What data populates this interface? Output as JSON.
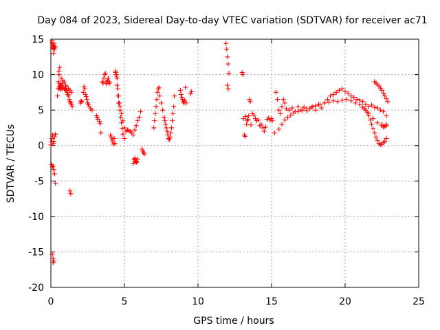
{
  "chart_data": {
    "type": "scatter",
    "title": "Day 084 of 2023, Sidereal Day-to-day VTEC variation (SDTVAR) for receiver ac71",
    "xlabel": "GPS time / hours",
    "ylabel": "SDTVAR / TECUs",
    "xlim": [
      0,
      25
    ],
    "ylim": [
      -20,
      15
    ],
    "xticks": [
      0,
      5,
      10,
      15,
      20,
      25
    ],
    "yticks": [
      -20,
      -15,
      -10,
      -5,
      0,
      5,
      10,
      15
    ],
    "xtick_labels": [
      "0",
      "5",
      "10",
      "15",
      "20",
      "25"
    ],
    "ytick_labels": [
      "-20",
      "-15",
      "-10",
      "-5",
      "0",
      "5",
      "10",
      "15"
    ],
    "grid": true,
    "marker": "+",
    "color": "#ff0000",
    "series": [
      {
        "name": "SDTVAR",
        "x": [
          0.0,
          0.04,
          0.08,
          0.12,
          0.16,
          0.2,
          0.24,
          0.3,
          0.06,
          0.1,
          0.14,
          0.18,
          0.22,
          0.26,
          0.05,
          0.1,
          0.15,
          0.2,
          0.25,
          0.3,
          0.08,
          0.13,
          0.18,
          0.22,
          0.3,
          0.1,
          0.15,
          0.15,
          0.2,
          0.45,
          0.5,
          0.55,
          0.6,
          0.65,
          0.7,
          0.75,
          0.8,
          0.85,
          0.9,
          0.95,
          1.0,
          1.05,
          1.1,
          1.15,
          1.2,
          1.25,
          1.3,
          1.35,
          1.4,
          1.45,
          0.55,
          0.6,
          0.7,
          0.8,
          0.9,
          1.0,
          1.1,
          1.2,
          1.3,
          1.4,
          0.5,
          0.55,
          0.6,
          0.65,
          1.3,
          1.35,
          2.0,
          2.05,
          2.1,
          2.2,
          2.25,
          2.3,
          2.35,
          2.4,
          2.45,
          2.5,
          2.55,
          2.6,
          2.7,
          2.8,
          3.1,
          3.15,
          3.2,
          3.3,
          3.35,
          3.4,
          3.5,
          3.55,
          3.6,
          3.65,
          3.7,
          3.75,
          3.8,
          3.85,
          3.9,
          3.95,
          4.0,
          4.05,
          4.1,
          4.15,
          4.2,
          4.25,
          4.3,
          4.35,
          4.4,
          4.45,
          4.5,
          4.55,
          4.6,
          4.65,
          4.7,
          4.75,
          4.8,
          4.85,
          4.9,
          5.0,
          4.4,
          4.45,
          4.5,
          4.55,
          4.6,
          4.7,
          4.8,
          4.9,
          5.0,
          5.1,
          5.2,
          5.3,
          5.4,
          5.5,
          5.6,
          5.7,
          5.8,
          5.9,
          6.0,
          5.6,
          5.65,
          5.7,
          5.75,
          5.8,
          5.85,
          5.9,
          6.2,
          6.25,
          6.3,
          6.35,
          6.1,
          7.0,
          7.05,
          7.1,
          7.15,
          7.2,
          7.25,
          7.3,
          7.35,
          7.4,
          7.5,
          7.6,
          7.7,
          7.75,
          7.8,
          7.85,
          7.9,
          7.95,
          8.0,
          8.05,
          8.1,
          8.15,
          8.2,
          8.25,
          8.3,
          8.35,
          8.4,
          8.8,
          8.85,
          8.9,
          8.95,
          9.0,
          9.05,
          9.1,
          9.15,
          9.2,
          9.5,
          9.55,
          11.9,
          11.95,
          12.0,
          12.05,
          12.1,
          12.0,
          12.05,
          13.0,
          13.05,
          13.1,
          13.15,
          13.2,
          13.25,
          13.3,
          13.35,
          13.4,
          13.45,
          13.5,
          13.55,
          13.6,
          13.7,
          13.8,
          13.9,
          14.0,
          14.1,
          14.2,
          14.3,
          14.4,
          14.5,
          14.6,
          14.7,
          14.8,
          14.9,
          15.0,
          15.05,
          15.2,
          15.3,
          15.4,
          15.5,
          15.6,
          15.7,
          15.8,
          15.9,
          16.0,
          16.2,
          16.4,
          16.6,
          16.8,
          17.0,
          17.2,
          17.4,
          17.6,
          17.8,
          18.0,
          18.2,
          18.4,
          18.6,
          18.8,
          19.0,
          19.2,
          19.4,
          19.6,
          19.8,
          20.0,
          20.2,
          20.4,
          20.6,
          20.8,
          21.0,
          21.2,
          21.4,
          21.6,
          21.8,
          22.0,
          22.2,
          22.4,
          22.6,
          22.8,
          15.5,
          15.7,
          15.9,
          16.1,
          16.3,
          16.5,
          16.8,
          17.1,
          17.4,
          17.7,
          18.0,
          18.3,
          18.6,
          18.9,
          19.2,
          19.5,
          19.8,
          20.1,
          20.4,
          20.7,
          21.0,
          21.3,
          21.6,
          21.9,
          22.2,
          22.5,
          22.8,
          21.2,
          21.3,
          21.4,
          21.5,
          21.6,
          21.7,
          21.8,
          21.9,
          22.0,
          22.1,
          22.2,
          22.3,
          22.4,
          22.5,
          22.6,
          22.7,
          22.8,
          22.0,
          22.1,
          22.2,
          22.3,
          22.4,
          22.5,
          22.6,
          22.7,
          22.8,
          22.9,
          22.5,
          22.6,
          22.7,
          22.8
        ],
        "y": [
          0.1,
          0.5,
          1.0,
          1.5,
          0.3,
          0.6,
          1.2,
          1.6,
          14.5,
          13.8,
          14.2,
          13.0,
          14.0,
          13.6,
          -2.7,
          -3.0,
          -2.9,
          -3.4,
          -4.0,
          -5.3,
          14.8,
          14.1,
          13.7,
          14.4,
          13.9,
          -15.3,
          -16.5,
          -15.9,
          -16.3,
          7.0,
          9.0,
          10.5,
          11.0,
          8.5,
          9.5,
          8.0,
          8.8,
          8.2,
          8.0,
          7.9,
          8.0,
          7.8,
          7.5,
          7.2,
          7.0,
          6.5,
          6.2,
          6.0,
          5.8,
          5.5,
          10.0,
          8.7,
          8.4,
          9.2,
          9.0,
          8.5,
          8.3,
          8.0,
          7.8,
          7.5,
          8.0,
          8.3,
          8.1,
          7.9,
          -6.4,
          -6.8,
          6.0,
          6.3,
          6.2,
          7.5,
          8.3,
          8.0,
          7.2,
          6.9,
          6.5,
          6.0,
          5.8,
          5.5,
          5.2,
          5.0,
          4.2,
          4.0,
          3.7,
          3.4,
          3.1,
          1.8,
          9.0,
          8.8,
          9.5,
          10.0,
          10.2,
          9.0,
          8.7,
          9.2,
          9.5,
          9.0,
          8.8,
          1.5,
          1.2,
          0.8,
          0.5,
          0.2,
          1.0,
          0.3,
          10.3,
          10.0,
          9.5,
          8.0,
          7.0,
          6.0,
          5.0,
          4.0,
          3.2,
          2.4,
          1.6,
          1.0,
          10.5,
          9.8,
          8.5,
          7.0,
          6.0,
          5.5,
          4.5,
          3.5,
          2.5,
          2.0,
          2.2,
          2.1,
          2.0,
          1.8,
          1.5,
          2.2,
          2.8,
          3.5,
          4.0,
          -2.5,
          -2.0,
          -1.8,
          -2.2,
          -2.4,
          -2.3,
          -1.9,
          -0.5,
          -0.8,
          -1.0,
          -1.2,
          4.8,
          2.5,
          3.5,
          4.5,
          5.5,
          6.5,
          7.5,
          8.0,
          8.2,
          7.0,
          6.0,
          5.0,
          4.0,
          3.5,
          3.0,
          2.5,
          2.0,
          1.5,
          1.0,
          0.8,
          1.2,
          1.8,
          2.5,
          3.5,
          4.5,
          5.5,
          7.0,
          7.8,
          7.2,
          6.8,
          6.5,
          6.2,
          6.0,
          6.4,
          8.2,
          6.0,
          7.3,
          7.6,
          14.4,
          13.6,
          12.5,
          11.5,
          10.2,
          8.5,
          8.0,
          10.3,
          10.0,
          3.8,
          1.5,
          1.3,
          4.1,
          3.0,
          3.5,
          3.7,
          4.2,
          6.5,
          6.2,
          2.9,
          4.5,
          4.3,
          3.8,
          3.5,
          3.6,
          2.8,
          3.0,
          2.5,
          2.0,
          2.6,
          3.7,
          3.9,
          3.6,
          3.8,
          3.5,
          1.8,
          7.5,
          6.5,
          5.0,
          4.5,
          5.5,
          6.5,
          6.0,
          5.2,
          5.0,
          5.3,
          4.8,
          5.5,
          5.0,
          5.4,
          4.9,
          5.2,
          5.5,
          5.0,
          5.8,
          5.3,
          6.0,
          6.5,
          7.0,
          7.2,
          7.5,
          7.8,
          8.0,
          7.6,
          7.4,
          7.0,
          6.8,
          6.5,
          6.4,
          6.2,
          5.8,
          5.5,
          5.7,
          5.4,
          5.3,
          5.0,
          4.8,
          4.2,
          2.3,
          3.0,
          3.6,
          4.0,
          4.3,
          4.6,
          4.8,
          5.0,
          5.2,
          5.4,
          5.6,
          5.8,
          6.0,
          6.1,
          6.3,
          6.2,
          6.4,
          6.5,
          6.3,
          6.0,
          5.8,
          5.2,
          4.5,
          3.8,
          3.2,
          3.0,
          2.8,
          5.4,
          5.2,
          5.0,
          4.7,
          4.2,
          3.6,
          3.0,
          2.4,
          1.8,
          1.2,
          0.7,
          0.3,
          0.1,
          0.2,
          0.4,
          0.6,
          1.0,
          9.0,
          8.8,
          8.6,
          8.4,
          8.1,
          7.8,
          7.4,
          7.0,
          6.6,
          6.2,
          2.8,
          2.6,
          2.7,
          3.0
        ]
      }
    ]
  }
}
